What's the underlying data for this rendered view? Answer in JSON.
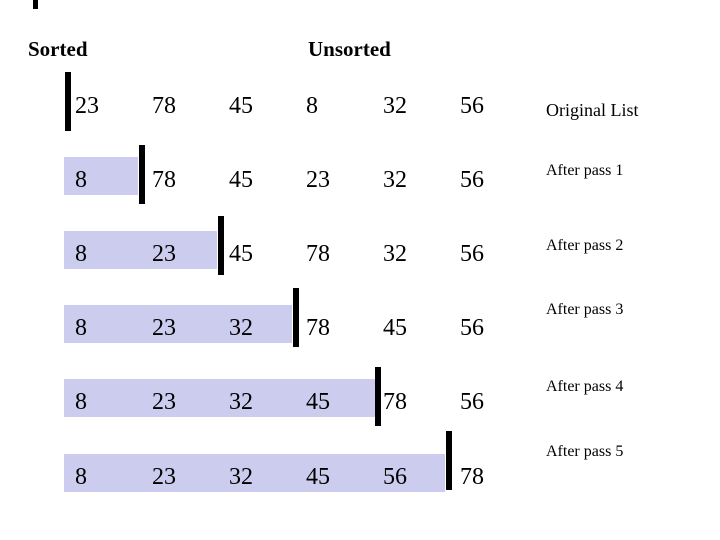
{
  "slide": {
    "headers": {
      "sorted": "Sorted",
      "unsorted": "Unsorted"
    },
    "rows": [
      {
        "values": [
          "23",
          "78",
          "45",
          "8",
          "32",
          "56"
        ],
        "sorted_count": 0,
        "label": "Original List"
      },
      {
        "values": [
          "8",
          "78",
          "45",
          "23",
          "32",
          "56"
        ],
        "sorted_count": 1,
        "label": "After pass 1"
      },
      {
        "values": [
          "8",
          "23",
          "45",
          "78",
          "32",
          "56"
        ],
        "sorted_count": 2,
        "label": "After pass 2"
      },
      {
        "values": [
          "8",
          "23",
          "32",
          "78",
          "45",
          "56"
        ],
        "sorted_count": 3,
        "label": "After pass 3"
      },
      {
        "values": [
          "8",
          "23",
          "32",
          "45",
          "78",
          "56"
        ],
        "sorted_count": 4,
        "label": "After pass 4"
      },
      {
        "values": [
          "8",
          "23",
          "32",
          "45",
          "56",
          "78"
        ],
        "sorted_count": 5,
        "label": "After pass 5"
      }
    ],
    "colors": {
      "sorted_fill": "#ccccee",
      "divider": "#000000",
      "text": "#000000",
      "background": "#ffffff"
    }
  }
}
